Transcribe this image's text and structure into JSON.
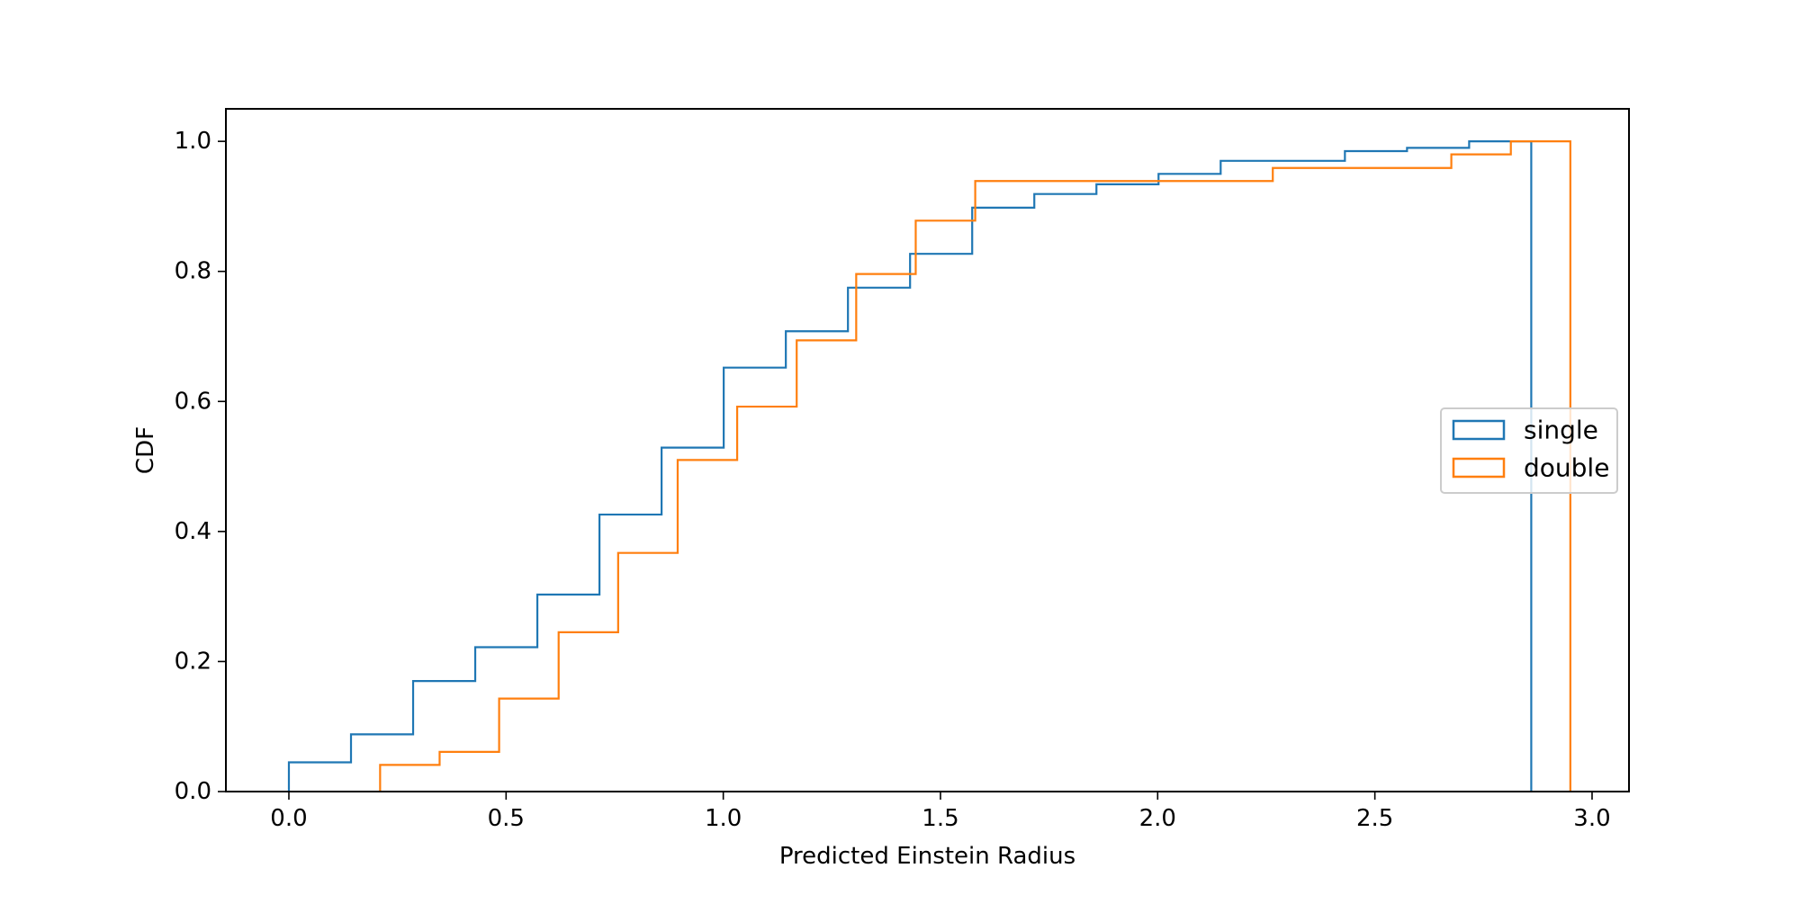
{
  "chart_data": {
    "type": "step",
    "title": "",
    "xlabel": "Predicted Einstein Radius",
    "ylabel": "CDF",
    "xlim": [
      -0.145,
      3.085
    ],
    "ylim": [
      0.0,
      1.05
    ],
    "xticks": [
      0.0,
      0.5,
      1.0,
      1.5,
      2.0,
      2.5,
      3.0
    ],
    "xtick_labels": [
      "0.0",
      "0.5",
      "1.0",
      "1.5",
      "2.0",
      "2.5",
      "3.0"
    ],
    "yticks": [
      0.0,
      0.2,
      0.4,
      0.6,
      0.8,
      1.0
    ],
    "ytick_labels": [
      "0.0",
      "0.2",
      "0.4",
      "0.6",
      "0.8",
      "1.0"
    ],
    "grid": false,
    "legend_position": "center-right",
    "series": [
      {
        "name": "single",
        "color": "#1f77b4",
        "histtype": "step",
        "cumulative": true,
        "bin_edges": [
          0.0,
          0.143,
          0.286,
          0.429,
          0.572,
          0.715,
          0.858,
          1.001,
          1.144,
          1.287,
          1.43,
          1.573,
          1.716,
          1.859,
          2.002,
          2.145,
          2.288,
          2.431,
          2.574,
          2.717,
          2.86
        ],
        "cdf": [
          0.045,
          0.088,
          0.17,
          0.222,
          0.303,
          0.426,
          0.529,
          0.652,
          0.708,
          0.775,
          0.827,
          0.898,
          0.919,
          0.934,
          0.95,
          0.97,
          0.97,
          0.985,
          0.99,
          1.0
        ]
      },
      {
        "name": "double",
        "color": "#ff7f0e",
        "histtype": "step",
        "cumulative": true,
        "bin_edges": [
          0.21,
          0.347,
          0.484,
          0.621,
          0.758,
          0.895,
          1.032,
          1.169,
          1.306,
          1.443,
          1.58,
          1.717,
          1.854,
          1.991,
          2.128,
          2.265,
          2.402,
          2.539,
          2.676,
          2.813,
          2.95
        ],
        "cdf": [
          0.041,
          0.061,
          0.143,
          0.245,
          0.367,
          0.51,
          0.592,
          0.694,
          0.796,
          0.878,
          0.939,
          0.939,
          0.939,
          0.939,
          0.939,
          0.959,
          0.959,
          0.959,
          0.98,
          1.0
        ]
      }
    ]
  }
}
